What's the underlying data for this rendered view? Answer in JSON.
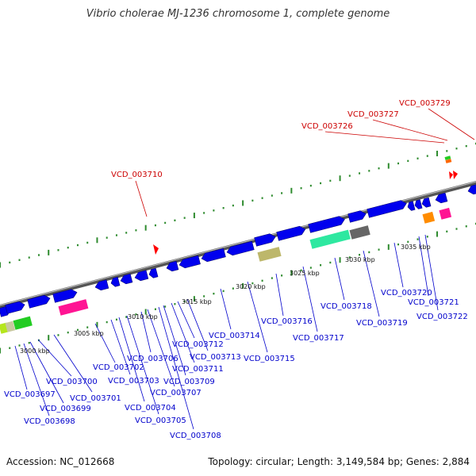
{
  "title": "Vibrio cholerae MJ-1236 chromosome 1, complete genome",
  "accession": "Accession: NC_012668",
  "topology": "Topology: circular; Length: 3,149,584 bp; Genes: 2,884",
  "colors": {
    "gene": "#0000ee",
    "red_label": "#cc0000",
    "blue_label": "#0000cc",
    "tick": "#2e8b2e"
  },
  "kbp_ticks": [
    "3000 kbp",
    "3005 kbp",
    "3010 kbp",
    "3015 kbp",
    "3020 kbp",
    "3025 kbp",
    "3030 kbp",
    "3035 kbp"
  ],
  "red_labels": [
    "VCD_003710",
    "VCD_003726",
    "VCD_003727",
    "VCD_003729"
  ],
  "blue_labels": [
    "VCD_003697",
    "VCD_003698",
    "VCD_003699",
    "VCD_003700",
    "VCD_003701",
    "VCD_003702",
    "VCD_003703",
    "VCD_003704",
    "VCD_003705",
    "VCD_003706",
    "VCD_003707",
    "VCD_003708",
    "VCD_003709",
    "VCD_003711",
    "VCD_003712",
    "VCD_003713",
    "VCD_003714",
    "VCD_003715",
    "VCD_003716",
    "VCD_003717",
    "VCD_003718",
    "VCD_003719",
    "VCD_003720",
    "VCD_003721",
    "VCD_003722"
  ]
}
